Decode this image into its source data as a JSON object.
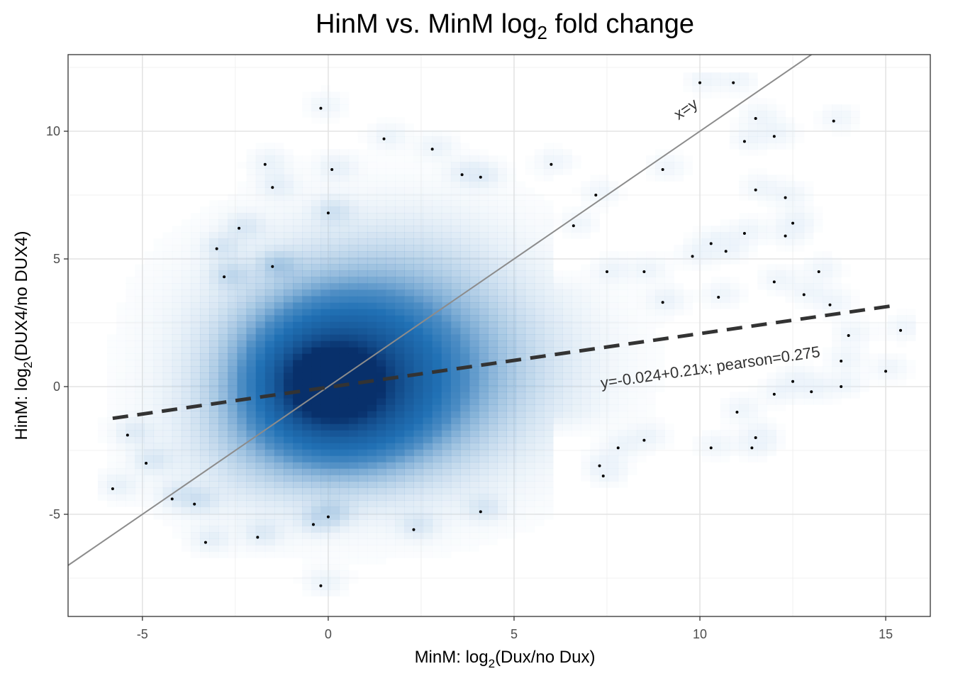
{
  "chart_data": {
    "type": "heatmap",
    "title": "HinM vs. MinM log",
    "title_subscript": "2",
    "title_suffix": " fold change",
    "xlabel": {
      "prefix": "MinM: log",
      "subscript": "2",
      "suffix": "(Dux/no Dux)"
    },
    "ylabel": {
      "prefix": "HinM: log",
      "subscript": "2",
      "suffix": "(DUX4/no DUX4)"
    },
    "xlim": [
      -7,
      16.2
    ],
    "ylim": [
      -9,
      13
    ],
    "x_ticks": [
      -5,
      0,
      5,
      10,
      15
    ],
    "x_tick_labels": [
      "-5",
      "0",
      "5",
      "10",
      "15"
    ],
    "y_ticks": [
      -5,
      0,
      5,
      10
    ],
    "y_tick_labels": [
      "-5",
      "0",
      "5",
      "10"
    ],
    "grid": true,
    "density_color": "#08519c",
    "identity_line": {
      "label": "x=y",
      "slope": 1,
      "intercept": 0,
      "color": "#8c8c8c"
    },
    "regression_line": {
      "label": "y=-0.024+0.21x; pearson=0.275",
      "intercept": -0.024,
      "slope": 0.21,
      "x_range": [
        -5.8,
        15.3
      ],
      "color": "#333333"
    },
    "density_blobs": [
      {
        "x": 0.0,
        "y": 0.0,
        "sx": 0.7,
        "sy": 0.8,
        "w": 1.0
      },
      {
        "x": 0.2,
        "y": 0.0,
        "sx": 1.6,
        "sy": 1.9,
        "w": 0.55
      },
      {
        "x": 0.8,
        "y": 0.3,
        "sx": 3.0,
        "sy": 3.2,
        "w": 0.28
      },
      {
        "x": 1.5,
        "y": 0.8,
        "sx": 4.5,
        "sy": 4.5,
        "w": 0.12
      },
      {
        "x": 7.0,
        "y": 0.5,
        "sx": 3.5,
        "sy": 2.2,
        "w": 0.07
      },
      {
        "x": 11.5,
        "y": 1.5,
        "sx": 2.5,
        "sy": 2.0,
        "w": 0.05
      },
      {
        "x": 2.0,
        "y": 5.5,
        "sx": 2.5,
        "sy": 2.5,
        "w": 0.06
      },
      {
        "x": -2.5,
        "y": -3.0,
        "sx": 2.0,
        "sy": 2.0,
        "w": 0.06
      }
    ],
    "isolated_points": [
      [
        -0.2,
        10.9
      ],
      [
        -5.8,
        -4.0
      ],
      [
        -5.4,
        -1.9
      ],
      [
        -3.3,
        -6.1
      ],
      [
        -0.2,
        -7.8
      ],
      [
        1.5,
        9.7
      ],
      [
        2.8,
        9.3
      ],
      [
        -1.7,
        8.7
      ],
      [
        0.1,
        8.5
      ],
      [
        6.0,
        8.7
      ],
      [
        9.0,
        8.5
      ],
      [
        7.2,
        7.5
      ],
      [
        10.0,
        11.9
      ],
      [
        10.9,
        11.9
      ],
      [
        11.5,
        10.5
      ],
      [
        12.0,
        9.8
      ],
      [
        11.2,
        9.6
      ],
      [
        13.6,
        10.4
      ],
      [
        11.5,
        7.7
      ],
      [
        12.3,
        7.4
      ],
      [
        12.5,
        6.4
      ],
      [
        12.3,
        5.9
      ],
      [
        10.3,
        5.6
      ],
      [
        9.8,
        5.1
      ],
      [
        10.7,
        5.3
      ],
      [
        11.2,
        6.0
      ],
      [
        13.2,
        4.5
      ],
      [
        12.0,
        4.1
      ],
      [
        12.8,
        3.6
      ],
      [
        13.5,
        3.2
      ],
      [
        10.5,
        3.5
      ],
      [
        9.0,
        3.3
      ],
      [
        15.4,
        2.2
      ],
      [
        15.0,
        0.6
      ],
      [
        13.8,
        1.0
      ],
      [
        12.5,
        0.2
      ],
      [
        12.0,
        -0.3
      ],
      [
        13.0,
        -0.2
      ],
      [
        11.0,
        -1.0
      ],
      [
        10.3,
        -2.4
      ],
      [
        11.5,
        -2.0
      ],
      [
        11.4,
        -2.4
      ],
      [
        8.5,
        -2.1
      ],
      [
        7.8,
        -2.4
      ],
      [
        7.4,
        -3.5
      ],
      [
        7.3,
        -3.1
      ],
      [
        4.1,
        -4.9
      ],
      [
        2.3,
        -5.6
      ],
      [
        0.0,
        -5.1
      ],
      [
        -0.4,
        -5.4
      ],
      [
        -1.9,
        -5.9
      ],
      [
        -4.2,
        -4.4
      ],
      [
        -3.6,
        -4.6
      ],
      [
        -4.9,
        -3.0
      ],
      [
        -1.5,
        7.8
      ],
      [
        -2.4,
        6.2
      ],
      [
        -3.0,
        5.4
      ],
      [
        -2.8,
        4.3
      ],
      [
        -1.5,
        4.7
      ],
      [
        0.0,
        6.8
      ],
      [
        3.6,
        8.3
      ],
      [
        4.1,
        8.2
      ],
      [
        7.5,
        4.5
      ],
      [
        8.5,
        4.5
      ],
      [
        6.6,
        6.3
      ],
      [
        14.0,
        2.0
      ],
      [
        13.8,
        0.0
      ]
    ]
  }
}
